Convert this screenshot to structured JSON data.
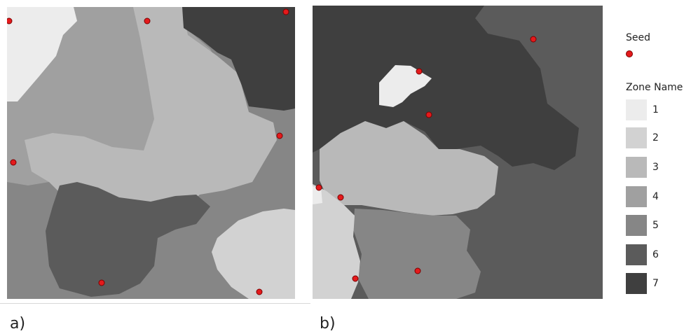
{
  "colors": {
    "zone_1": "#ececec",
    "zone_2": "#d2d2d2",
    "zone_3": "#b9b9b9",
    "zone_4": "#a0a0a0",
    "zone_5": "#868686",
    "zone_6": "#5b5b5b",
    "zone_7": "#3f3f3f",
    "seed": "#e41a1c"
  },
  "panels": {
    "a": {
      "label": "a)"
    },
    "b": {
      "label": "b)"
    }
  },
  "legend": {
    "seed_title": "Seed",
    "zone_title": "Zone Name",
    "zones": [
      {
        "name": "1",
        "color": "#ececec"
      },
      {
        "name": "2",
        "color": "#d2d2d2"
      },
      {
        "name": "3",
        "color": "#b9b9b9"
      },
      {
        "name": "4",
        "color": "#a0a0a0"
      },
      {
        "name": "5",
        "color": "#868686"
      },
      {
        "name": "6",
        "color": "#5b5b5b"
      },
      {
        "name": "7",
        "color": "#3f3f3f"
      }
    ]
  }
}
